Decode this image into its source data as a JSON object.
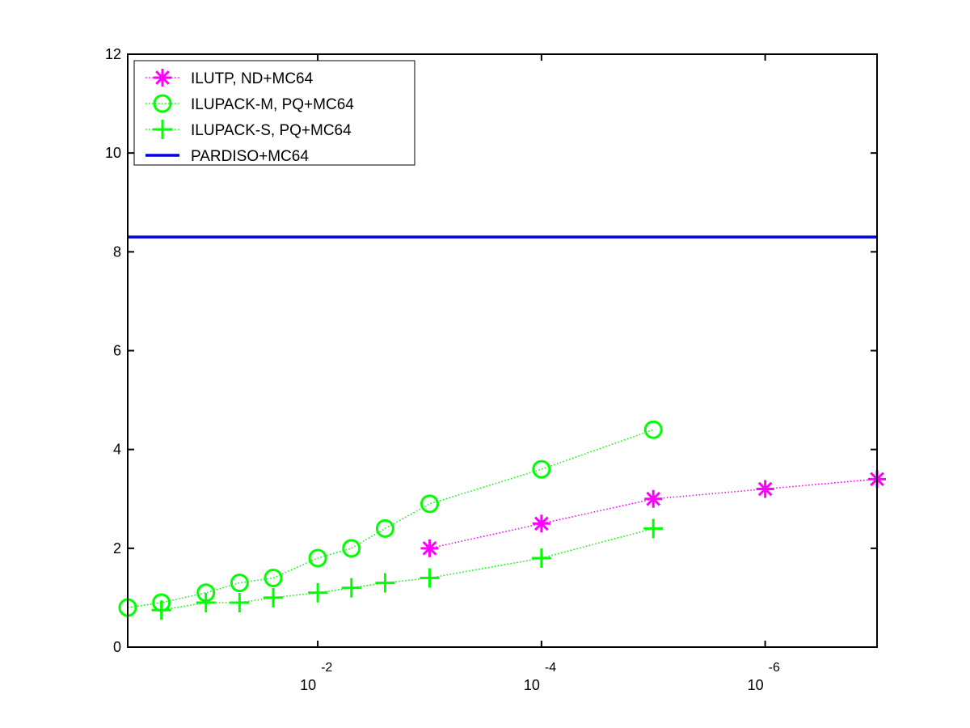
{
  "chart_data": {
    "type": "line",
    "x_scale": "log",
    "x_direction": "decreasing",
    "xlim": [
      0.5,
      1e-07
    ],
    "ylim": [
      0,
      12
    ],
    "y_ticks": [
      0,
      2,
      4,
      6,
      8,
      10,
      12
    ],
    "x_ticks": [
      {
        "value": 0.01,
        "base": "10",
        "exp": "-2"
      },
      {
        "value": 0.0001,
        "base": "10",
        "exp": "-4"
      },
      {
        "value": 1e-06,
        "base": "10",
        "exp": "-6"
      }
    ],
    "legend_position": "top-left",
    "series": [
      {
        "name": "ILUTP,  ND+MC64",
        "color": "#ff00ff",
        "marker": "asterisk",
        "line_style": "dotted",
        "x": [
          0.001,
          0.0001,
          1e-05,
          1e-06,
          1e-07
        ],
        "y": [
          2.0,
          2.5,
          3.0,
          3.2,
          3.4
        ]
      },
      {
        "name": "ILUPACK-M, PQ+MC64",
        "color": "#00ff00",
        "marker": "circle",
        "line_style": "dotted",
        "x": [
          0.5,
          0.25,
          0.1,
          0.05,
          0.025,
          0.01,
          0.005,
          0.0025,
          0.001,
          0.0001,
          1e-05
        ],
        "y": [
          0.8,
          0.9,
          1.1,
          1.3,
          1.4,
          1.8,
          2.0,
          2.4,
          2.9,
          3.6,
          4.4
        ]
      },
      {
        "name": "ILUPACK-S, PQ+MC64",
        "color": "#00ff00",
        "marker": "plus",
        "line_style": "dotted",
        "x": [
          0.25,
          0.1,
          0.05,
          0.025,
          0.01,
          0.005,
          0.0025,
          0.001,
          0.0001,
          1e-05
        ],
        "y": [
          0.75,
          0.9,
          0.9,
          1.0,
          1.1,
          1.2,
          1.3,
          1.4,
          1.8,
          2.4
        ]
      },
      {
        "name": "PARDISO+MC64",
        "color": "#0000e6",
        "marker": "none",
        "line_style": "solid",
        "x": [
          0.5,
          1e-07
        ],
        "y": [
          8.3,
          8.3
        ]
      }
    ]
  }
}
